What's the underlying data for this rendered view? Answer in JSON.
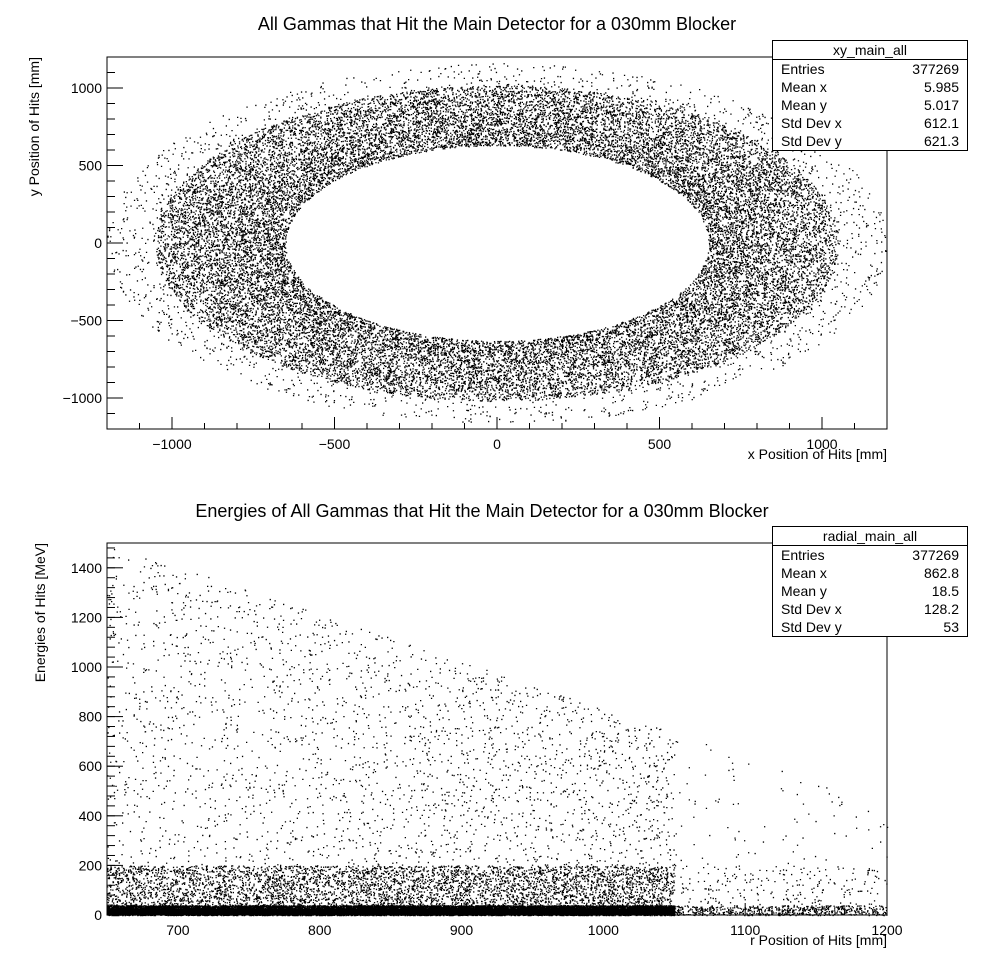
{
  "chart_data": [
    {
      "type": "scatter",
      "title": "All Gammas that Hit the Main Detector for a 030mm Blocker",
      "xlabel": "x Position of Hits [mm]",
      "ylabel": "y Position of Hits [mm]",
      "xlim": [
        -1200,
        1200
      ],
      "ylim": [
        -1200,
        1200
      ],
      "xticks": [
        -1000,
        -500,
        0,
        500,
        1000
      ],
      "yticks": [
        -1000,
        -500,
        0,
        500,
        1000
      ],
      "xtick_labels": [
        "−1000",
        "−500",
        "0",
        "500",
        "1000"
      ],
      "ytick_labels": [
        "−1000",
        "−500",
        "0",
        "500",
        "1000"
      ],
      "distribution": {
        "shape": "ring",
        "inner_radius_x": 650,
        "inner_radius_y": 630,
        "dense_outer_radius": 1050,
        "sparse_outer_radius": 1200,
        "points": 26000
      },
      "stats": {
        "name": "xy_main_all",
        "rows": [
          {
            "label": "Entries",
            "value": "377269"
          },
          {
            "label": "Mean x",
            "value": "5.985"
          },
          {
            "label": "Mean y",
            "value": "5.017"
          },
          {
            "label": "Std Dev x",
            "value": "612.1"
          },
          {
            "label": "Std Dev y",
            "value": "621.3"
          }
        ]
      },
      "grid": false
    },
    {
      "type": "scatter",
      "title": "Energies of All Gammas that Hit the Main Detector for a 030mm Blocker",
      "xlabel": "r Position of Hits [mm]",
      "ylabel": "Energies of Hits [MeV]",
      "xlim": [
        650,
        1200
      ],
      "ylim": [
        0,
        1500
      ],
      "xticks": [
        700,
        800,
        900,
        1000,
        1100,
        1200
      ],
      "yticks": [
        0,
        200,
        400,
        600,
        800,
        1000,
        1200,
        1400
      ],
      "xtick_labels": [
        "700",
        "800",
        "900",
        "1000",
        "1100",
        "1200"
      ],
      "ytick_labels": [
        "0",
        "200",
        "400",
        "600",
        "800",
        "1000",
        "1200",
        "1400"
      ],
      "distribution": {
        "shape": "falling_energy",
        "r_min": 650,
        "r_max": 1200,
        "r_dense_max": 1050,
        "mean_energy": 18.5,
        "points": 22000
      },
      "stats": {
        "name": "radial_main_all",
        "rows": [
          {
            "label": "Entries",
            "value": "377269"
          },
          {
            "label": "Mean x",
            "value": "862.8"
          },
          {
            "label": "Mean y",
            "value": "18.5"
          },
          {
            "label": "Std Dev x",
            "value": "128.2"
          },
          {
            "label": "Std Dev y",
            "value": "53"
          }
        ]
      },
      "grid": false
    }
  ]
}
